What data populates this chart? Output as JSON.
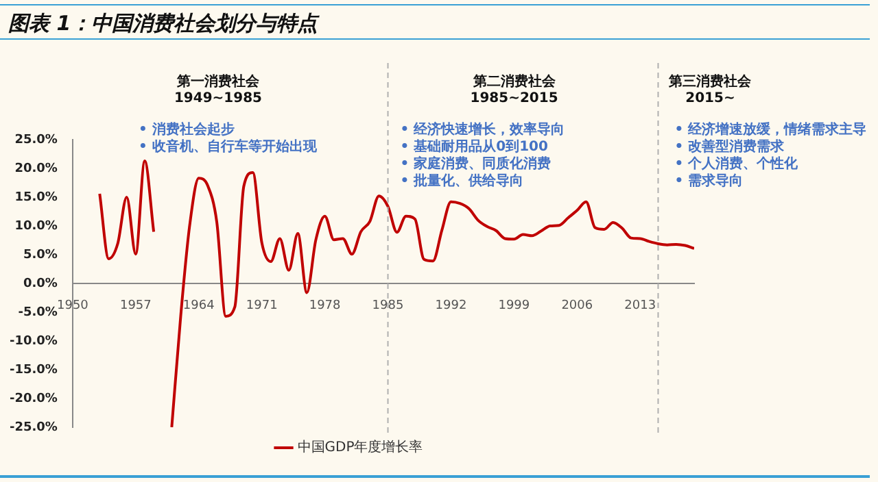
{
  "chart_data": {
    "type": "line",
    "title": "图表 1：中国消费社会划分与特点",
    "x": [
      1953,
      1954,
      1955,
      1956,
      1957,
      1958,
      1959,
      1960,
      1961,
      1962,
      1963,
      1964,
      1965,
      1966,
      1967,
      1968,
      1969,
      1970,
      1971,
      1972,
      1973,
      1974,
      1975,
      1976,
      1977,
      1978,
      1979,
      1980,
      1981,
      1982,
      1983,
      1984,
      1985,
      1986,
      1987,
      1988,
      1989,
      1990,
      1991,
      1992,
      1993,
      1994,
      1995,
      1996,
      1997,
      1998,
      1999,
      2000,
      2001,
      2002,
      2003,
      2004,
      2005,
      2006,
      2007,
      2008,
      2009,
      2010,
      2011,
      2012,
      2013,
      2014,
      2015,
      2016,
      2017,
      2018,
      2019
    ],
    "series": [
      {
        "name": "中国GDP年度增长率",
        "color": "#c00000",
        "values": [
          15.6,
          4.3,
          6.9,
          15.0,
          5.1,
          21.3,
          9.0,
          null,
          -25.0,
          -5.6,
          10.2,
          18.3,
          17.0,
          10.7,
          -5.7,
          -4.1,
          16.9,
          19.3,
          7.1,
          3.8,
          7.8,
          2.3,
          8.7,
          -1.6,
          7.6,
          11.7,
          7.6,
          7.8,
          5.1,
          9.0,
          10.8,
          15.2,
          13.4,
          8.9,
          11.7,
          11.2,
          4.2,
          3.9,
          9.3,
          14.2,
          13.9,
          13.0,
          11.0,
          9.9,
          9.2,
          7.8,
          7.7,
          8.5,
          8.3,
          9.1,
          10.0,
          10.1,
          11.4,
          12.7,
          14.2,
          9.7,
          9.4,
          10.6,
          9.6,
          7.9,
          7.8,
          7.3,
          6.9,
          6.7,
          6.8,
          6.6,
          6.1
        ]
      }
    ],
    "xlim": [
      1950,
      2019
    ],
    "xticks": [
      1950,
      1957,
      1964,
      1971,
      1978,
      1985,
      1992,
      1999,
      2006,
      2013
    ],
    "ylim": [
      -25,
      25
    ],
    "yticks": [
      {
        "value": -25,
        "label": "-25.0%"
      },
      {
        "value": -20,
        "label": "-20.0%"
      },
      {
        "value": -15,
        "label": "-15.0%"
      },
      {
        "value": -10,
        "label": "-10.0%"
      },
      {
        "value": -5,
        "label": "-5.0%"
      },
      {
        "value": 0,
        "label": "0.0%"
      },
      {
        "value": 5,
        "label": "5.0%"
      },
      {
        "value": 10,
        "label": "10.0%"
      },
      {
        "value": 15,
        "label": "15.0%"
      },
      {
        "value": 20,
        "label": "20.0%"
      },
      {
        "value": 25,
        "label": "25.0%"
      }
    ],
    "ref_lines": [
      {
        "axis": "x",
        "value": 1985,
        "color": "#b0b0b0",
        "line_style": "dashed"
      },
      {
        "axis": "x",
        "value": 2015,
        "color": "#b0b0b0",
        "line_style": "dashed"
      }
    ],
    "annotations": [
      "第一消费社会\n1949~1985",
      "• 消费社会起步\n• 收音机、自行车等开始出现",
      "第二消费社会\n1985~2015",
      "• 经济快速增长，效率导向\n• 基础耐用品从0到100\n• 家庭消费、同质化消费\n• 批量化、供给导向",
      "第三消费社会\n2015~",
      "• 经济增速放缓，情绪需求主导\n• 改善型消费需求\n• 个人消费、个性化\n• 需求导向"
    ],
    "grid": false,
    "legend": "bottom",
    "marker": "none",
    "line_style": "solid"
  }
}
